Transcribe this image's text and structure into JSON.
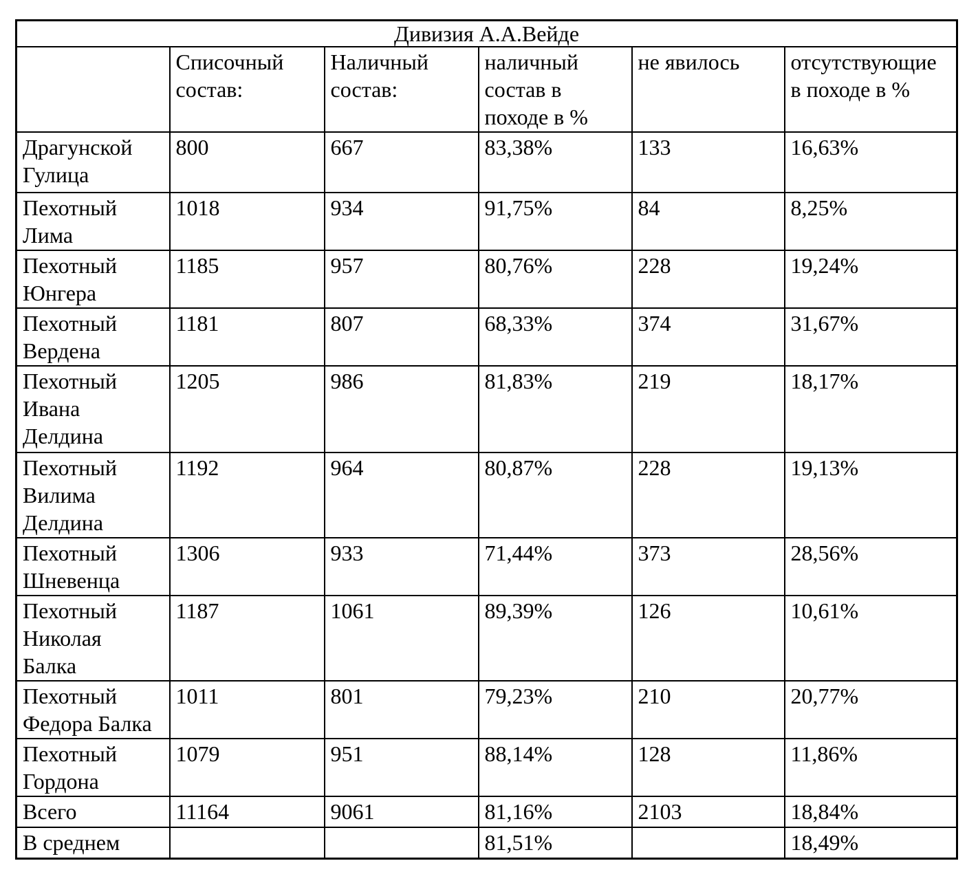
{
  "table": {
    "title": "Дивизия А.А.Вейде",
    "columns": [
      "",
      "Списочный состав:",
      "Наличный состав:",
      "наличный состав в походе в %",
      "не явилось",
      "отсутствующие в походе в %"
    ],
    "rows": [
      {
        "name": "Драгунской Гулица",
        "list_strength": "800",
        "present_strength": "667",
        "present_pct": "83,38%",
        "not_appeared": "133",
        "absent_pct": "16,63%"
      },
      {
        "name": "Пехотный Лима",
        "list_strength": "1018",
        "present_strength": "934",
        "present_pct": "91,75%",
        "not_appeared": "84",
        "absent_pct": "8,25%"
      },
      {
        "name": "Пехотный Юнгера",
        "list_strength": "1185",
        "present_strength": "957",
        "present_pct": "80,76%",
        "not_appeared": "228",
        "absent_pct": "19,24%"
      },
      {
        "name": "Пехотный Вердена",
        "list_strength": "1181",
        "present_strength": "807",
        "present_pct": "68,33%",
        "not_appeared": "374",
        "absent_pct": "31,67%"
      },
      {
        "name": "Пехотный Ивана Делдина",
        "list_strength": "1205",
        "present_strength": "986",
        "present_pct": "81,83%",
        "not_appeared": "219",
        "absent_pct": "18,17%"
      },
      {
        "name": "Пехотный Вилима Делдина",
        "list_strength": "1192",
        "present_strength": "964",
        "present_pct": "80,87%",
        "not_appeared": "228",
        "absent_pct": "19,13%"
      },
      {
        "name": "Пехотный Шневенца",
        "list_strength": "1306",
        "present_strength": "933",
        "present_pct": "71,44%",
        "not_appeared": "373",
        "absent_pct": "28,56%"
      },
      {
        "name": "Пехотный Николая Балка",
        "list_strength": "1187",
        "present_strength": "1061",
        "present_pct": "89,39%",
        "not_appeared": "126",
        "absent_pct": "10,61%"
      },
      {
        "name": "Пехотный Федора Балка",
        "list_strength": "1011",
        "present_strength": "801",
        "present_pct": "79,23%",
        "not_appeared": "210",
        "absent_pct": "20,77%"
      },
      {
        "name": "Пехотный Гордона",
        "list_strength": "1079",
        "present_strength": "951",
        "present_pct": "88,14%",
        "not_appeared": "128",
        "absent_pct": "11,86%"
      },
      {
        "name": "Всего",
        "list_strength": "11164",
        "present_strength": "9061",
        "present_pct": "81,16%",
        "not_appeared": "2103",
        "absent_pct": "18,84%"
      },
      {
        "name": "В среднем",
        "list_strength": "",
        "present_strength": "",
        "present_pct": "81,51%",
        "not_appeared": "",
        "absent_pct": "18,49%"
      }
    ]
  }
}
